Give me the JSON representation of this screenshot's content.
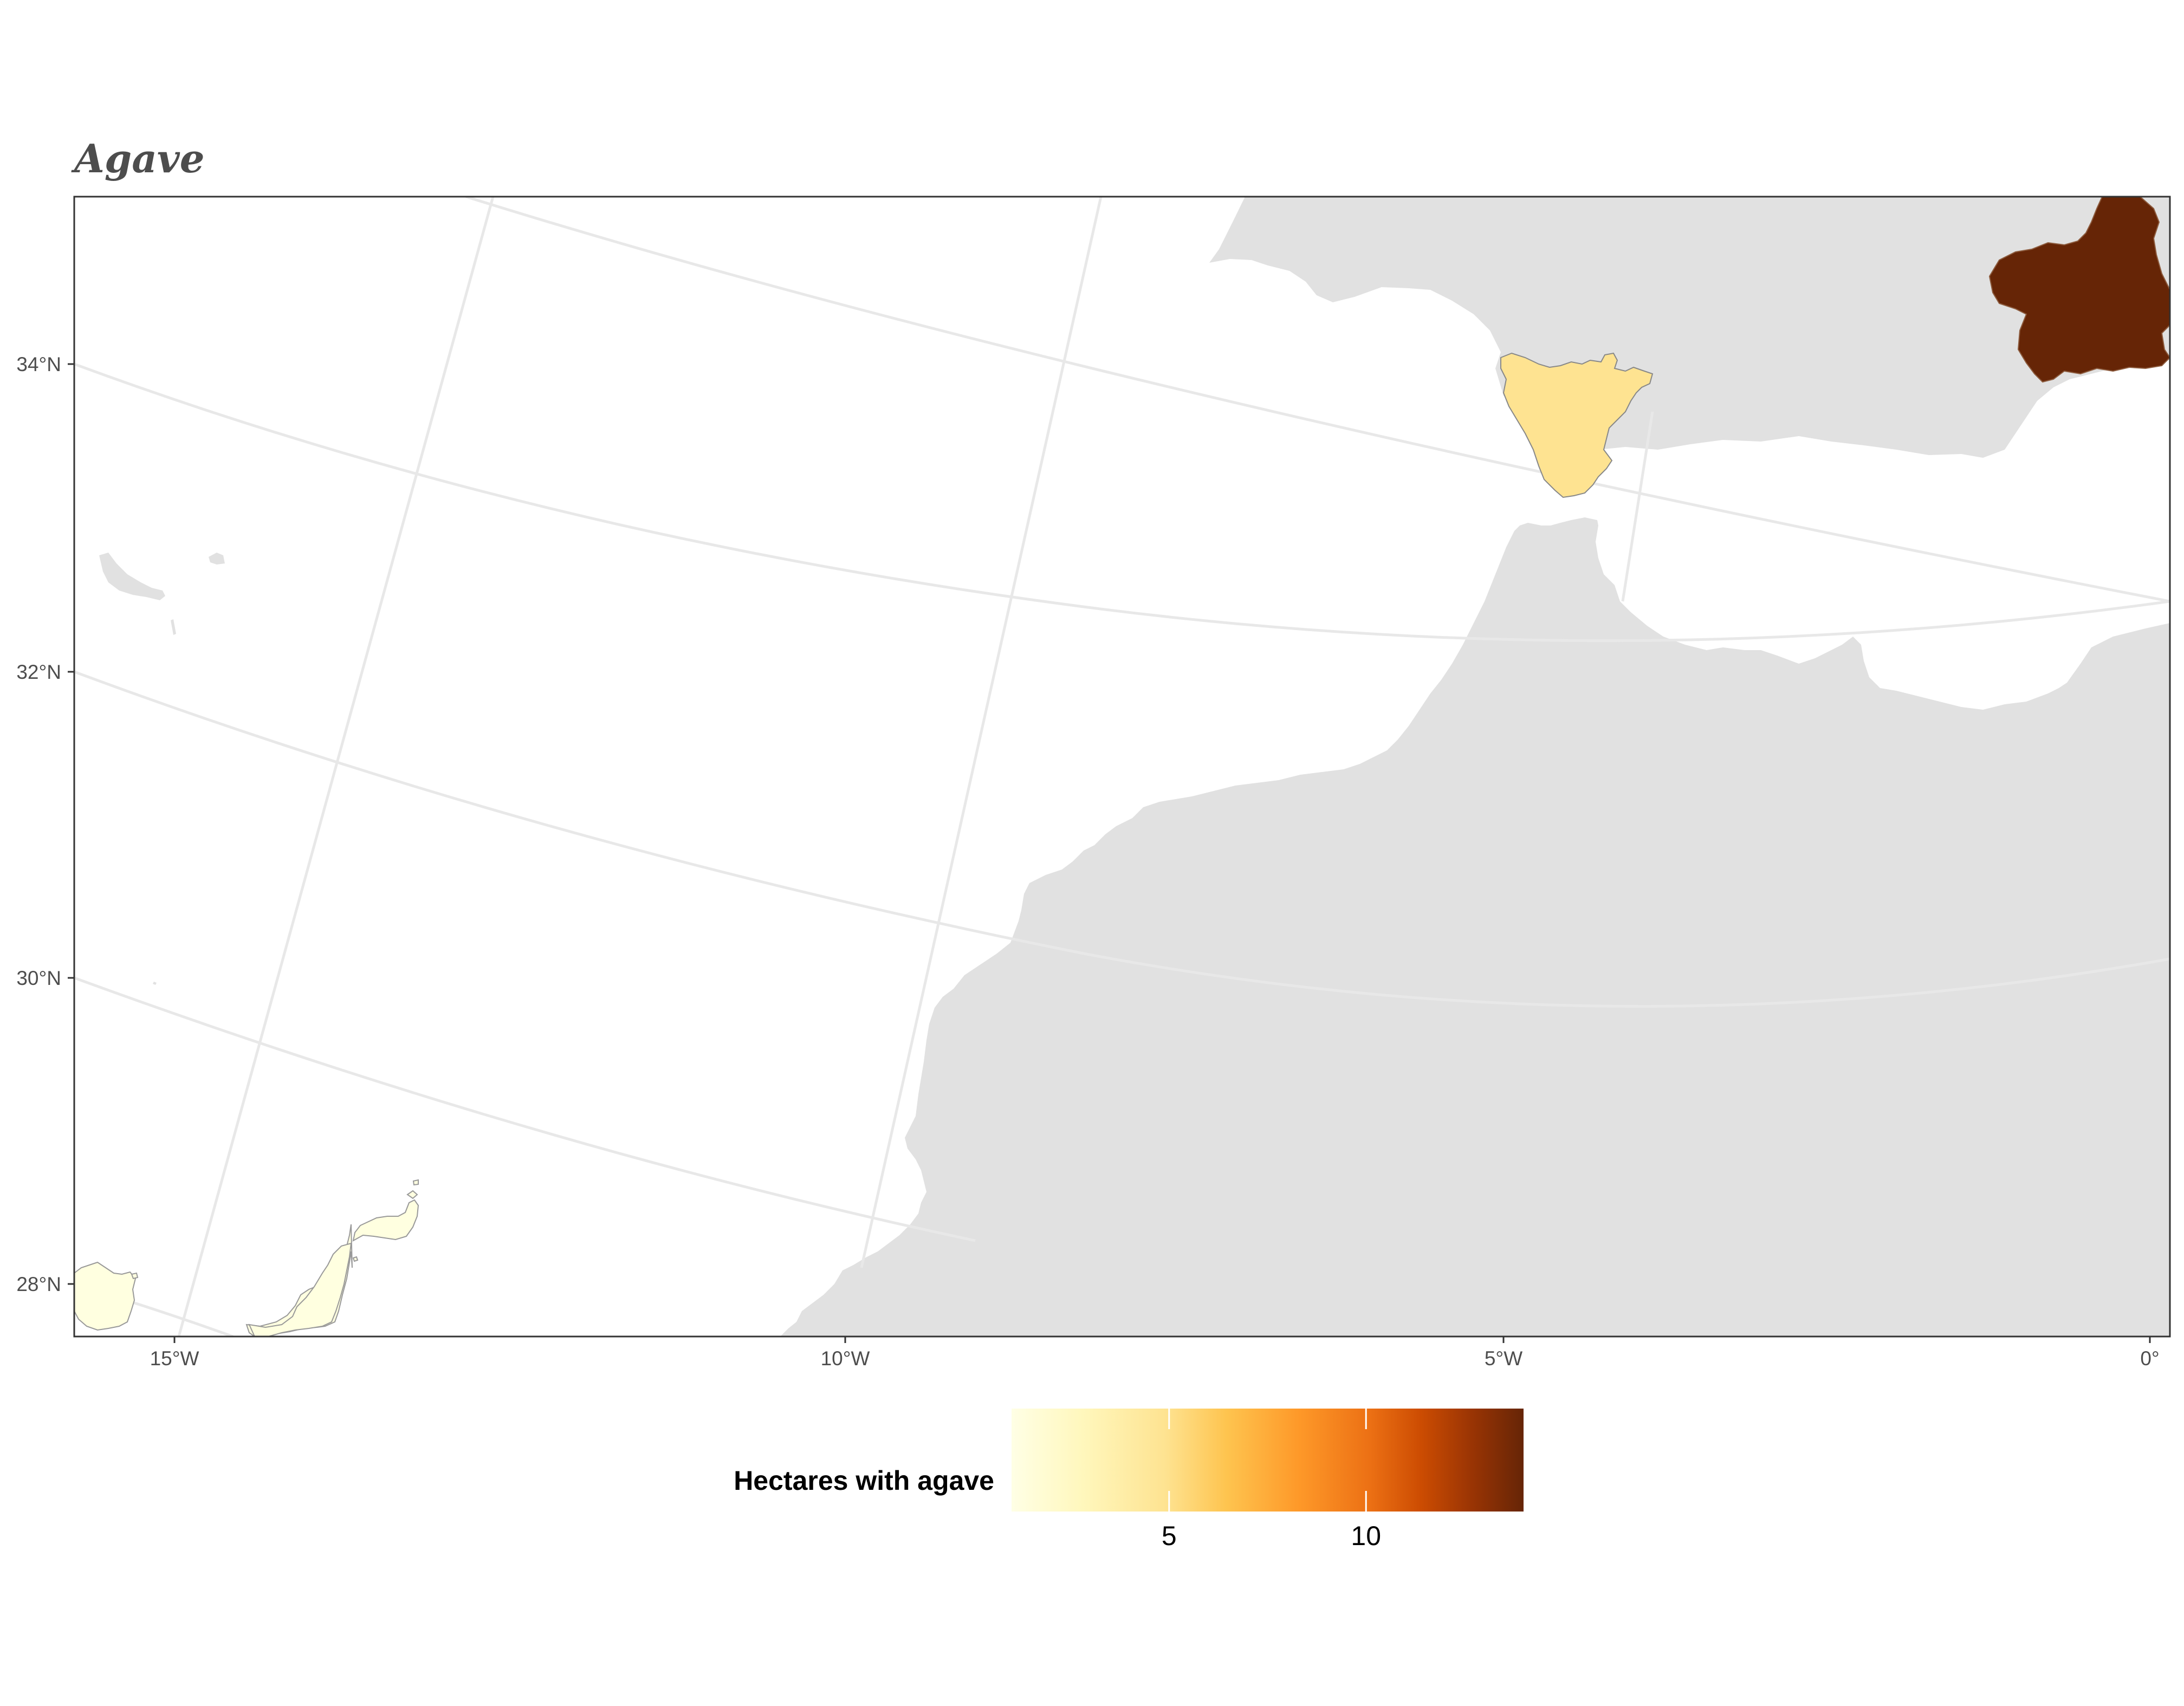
{
  "title": "Agave",
  "map": {
    "projection_note": "",
    "lat_labels": [
      "34°N",
      "32°N",
      "30°N",
      "28°N"
    ],
    "lon_labels": [
      "15°W",
      "10°W",
      "5°W",
      "0°"
    ],
    "land_color": "#e1e1e1",
    "sea_color": "#ffffff",
    "graticule_color": "#e8e8e8",
    "regions": [
      {
        "name": "Murcia",
        "value": 13.4,
        "color": "#662506"
      },
      {
        "name": "Cádiz",
        "value": 2.6,
        "color": "#fee391"
      },
      {
        "name": "Las Palmas",
        "value": 0.5,
        "color": "#ffffe0"
      }
    ]
  },
  "legend": {
    "title": "Hectares with agave",
    "ticks": [
      "5",
      "10"
    ],
    "tick_values": [
      5,
      10
    ],
    "range": [
      1,
      14
    ],
    "colors": [
      "#ffffe5",
      "#fee391",
      "#fec44f",
      "#fe9929",
      "#ec7014",
      "#cc4c02",
      "#993404",
      "#662506"
    ]
  }
}
